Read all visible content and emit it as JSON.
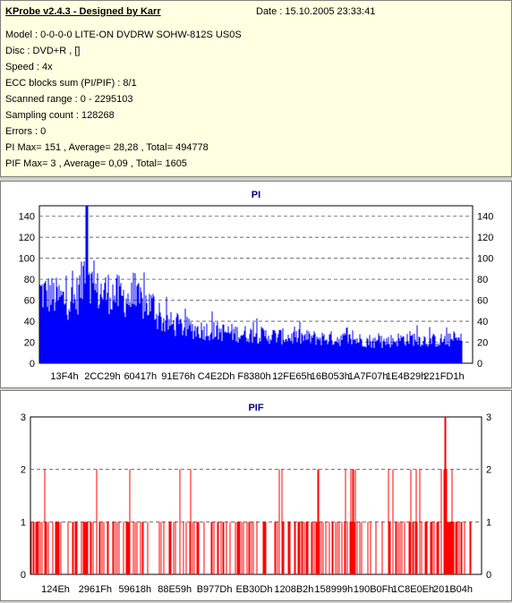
{
  "info": {
    "title": "KProbe v2.4.3 - Designed by Karr",
    "date": "Date : 15.10.2005 23:33:41",
    "lines": [
      "Model : 0-0-0-0 LITE-ON DVDRW SOHW-812S  US0S",
      "Disc : DVD+R ,  []",
      "Speed : 4x",
      "ECC blocks sum (PI/PIF) : 8/1",
      "Scanned range : 0 - 2295103",
      "Sampling count : 128268",
      "Errors : 0",
      "PI Max= 151 , Average= 28,28 , Total= 494778",
      "PIF Max= 3 , Average= 0,09 , Total= 1605"
    ]
  },
  "chart_data": [
    {
      "type": "bar",
      "title": "PI",
      "ylim": [
        0,
        150
      ],
      "yticks": [
        0,
        20,
        40,
        60,
        80,
        100,
        120,
        140
      ],
      "xticks": [
        "13F4h",
        "2CC29h",
        "60417h",
        "91E76h",
        "C4E2Dh",
        "F8380h",
        "12FE65h",
        "16B053h",
        "1A7F07h",
        "1E4B29h",
        "221FD1h"
      ],
      "color": "#0000ff",
      "grid": true,
      "profile": [
        [
          0,
          85
        ],
        [
          0.06,
          75
        ],
        [
          0.08,
          74
        ],
        [
          0.1,
          95
        ],
        [
          0.11,
          151
        ],
        [
          0.12,
          95
        ],
        [
          0.13,
          85
        ],
        [
          0.16,
          85
        ],
        [
          0.2,
          78
        ],
        [
          0.24,
          72
        ],
        [
          0.27,
          68
        ],
        [
          0.28,
          52
        ],
        [
          0.32,
          45
        ],
        [
          0.36,
          41
        ],
        [
          0.42,
          38
        ],
        [
          0.48,
          35
        ],
        [
          0.54,
          33
        ],
        [
          0.6,
          31
        ],
        [
          0.66,
          30
        ],
        [
          0.72,
          29
        ],
        [
          0.78,
          27
        ],
        [
          0.8,
          24
        ],
        [
          0.84,
          28
        ],
        [
          0.88,
          30
        ],
        [
          0.92,
          27
        ],
        [
          1.0,
          28
        ]
      ]
    },
    {
      "type": "bar",
      "title": "PIF",
      "ylim": [
        0,
        3
      ],
      "yticks": [
        0,
        1,
        2,
        3
      ],
      "xticks": [
        "124Eh",
        "2961Fh",
        "59618h",
        "88E59h",
        "B977Dh",
        "EB30Dh",
        "1208B2h",
        "158999h",
        "190B0Fh",
        "1C8E0Eh",
        "201B04h"
      ],
      "color": "#ff0000",
      "grid": true
    }
  ]
}
